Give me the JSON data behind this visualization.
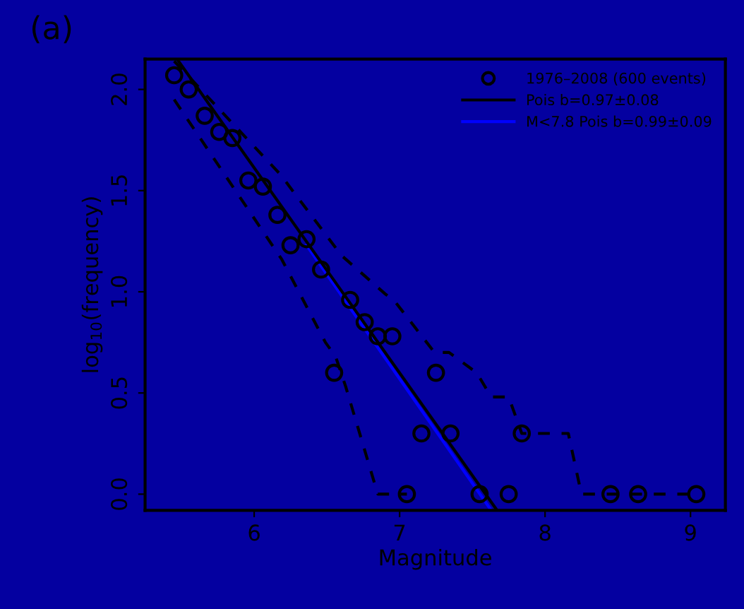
{
  "chart_data": {
    "type": "scatter",
    "xlabel": "Magnitude",
    "ylabel": "log$_{10}$(frequency)",
    "annotations": [
      "(a)"
    ],
    "xlim": [
      5.25,
      9.24
    ],
    "ylim": [
      -0.08,
      2.15
    ],
    "xticks": [
      6,
      7,
      8,
      9
    ],
    "yticks": [
      {
        "value": 0,
        "label": "0.0"
      },
      {
        "value": 0.5,
        "label": "0.5"
      },
      {
        "value": 1,
        "label": "1.0"
      },
      {
        "value": 1.5,
        "label": "1.5"
      },
      {
        "value": 2,
        "label": "2.0"
      }
    ],
    "grid": false,
    "legend": "top right",
    "series": [
      {
        "name": "1976–2008 (600 events)",
        "marker": "circle",
        "color": "#000000",
        "x": [
          5.45,
          5.55,
          5.66,
          5.76,
          5.85,
          5.96,
          6.06,
          6.16,
          6.25,
          6.36,
          6.46,
          6.55,
          6.66,
          6.76,
          6.85,
          6.95,
          7.05,
          7.15,
          7.25,
          7.35,
          7.55,
          7.75,
          7.84,
          8.45,
          8.64,
          9.04
        ],
        "values": [
          2.07,
          2.0,
          1.87,
          1.79,
          1.76,
          1.55,
          1.52,
          1.38,
          1.23,
          1.26,
          1.11,
          0.6,
          0.96,
          0.85,
          0.78,
          0.78,
          0,
          0.3,
          0.6,
          0.3,
          0,
          0,
          0.3,
          0,
          0,
          0
        ]
      },
      {
        "type": "line",
        "marker": "none",
        "line_style": "dashed",
        "color": "#000000",
        "x": [
          5.45,
          6.18,
          6.6,
          6.9,
          6.97,
          7.24,
          7.34,
          7.53,
          7.63,
          7.75,
          7.84,
          8.16,
          8.25,
          9.04
        ],
        "values": [
          2.14,
          1.58,
          1.18,
          0.99,
          0.95,
          0.7,
          0.7,
          0.6,
          0.48,
          0.48,
          0.3,
          0.3,
          0,
          0
        ]
      },
      {
        "type": "line",
        "marker": "none",
        "line_style": "dashed",
        "color": "#000000",
        "x": [
          5.45,
          6.19,
          6.49,
          6.56,
          6.63,
          6.85,
          7.05
        ],
        "values": [
          1.95,
          1.16,
          0.75,
          0.68,
          0.53,
          0,
          0
        ]
      },
      {
        "name": "M<7.8 Pois b=0.99±0.09",
        "type": "line",
        "marker": "none",
        "line_style": "solid",
        "color": "#0000ff",
        "x": [
          6.36,
          7.63
        ],
        "values": [
          1.23,
          -0.08
        ]
      },
      {
        "name": "Pois b=0.97±0.08",
        "type": "line",
        "marker": "none",
        "line_style": "solid",
        "color": "#000000",
        "x": [
          5.47,
          7.67
        ],
        "values": [
          2.15,
          -0.08
        ]
      }
    ]
  }
}
